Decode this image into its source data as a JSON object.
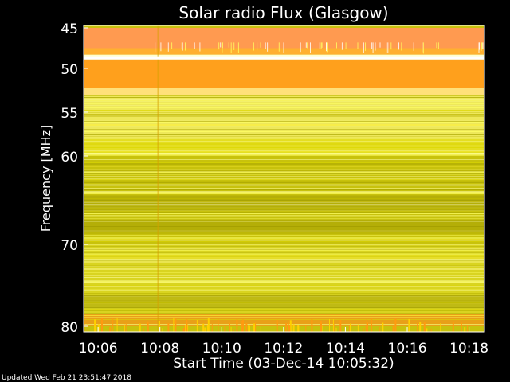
{
  "chart_data": {
    "type": "heatmap",
    "title": "Solar radio Flux (Glasgow)",
    "xlabel": "Start Time (03-Dec-14 10:05:32)",
    "ylabel": "Frequency [MHz]",
    "x_axis": {
      "unit": "time",
      "range": [
        "10:05:32",
        "10:18:30"
      ],
      "ticks": [
        "10:06",
        "10:08",
        "10:10",
        "10:12",
        "10:14",
        "10:16",
        "10:18"
      ]
    },
    "y_axis": {
      "unit": "MHz",
      "range": [
        45,
        80
      ],
      "inverted": true,
      "scale": "nonlinear",
      "ticks": [
        "45",
        "50",
        "55",
        "60",
        "70",
        "80"
      ]
    },
    "legend": "none",
    "grid": false,
    "colormap": [
      "#ff8a4a",
      "#ffa31f",
      "#ffe61a",
      "#f7f200",
      "#c9c400",
      "#ffffff"
    ],
    "frequency_bands": [
      {
        "from_mhz": 45.0,
        "to_mhz": 47.5,
        "level": "high",
        "color": "#ff9a50"
      },
      {
        "from_mhz": 47.5,
        "to_mhz": 48.3,
        "level": "high",
        "color": "#ffb030"
      },
      {
        "from_mhz": 48.3,
        "to_mhz": 48.9,
        "level": "saturated",
        "color": "#ffffd0"
      },
      {
        "from_mhz": 48.9,
        "to_mhz": 52.2,
        "level": "high",
        "color": "#ffa01c"
      },
      {
        "from_mhz": 52.2,
        "to_mhz": 53.0,
        "level": "medium",
        "color": "#ffe07a"
      },
      {
        "from_mhz": 53.0,
        "to_mhz": 58.0,
        "level": "medium",
        "color": "#eee85a"
      },
      {
        "from_mhz": 58.0,
        "to_mhz": 60.0,
        "level": "medium",
        "color": "#e4de22"
      },
      {
        "from_mhz": 60.0,
        "to_mhz": 70.0,
        "level": "low",
        "color": "#c8c20c"
      },
      {
        "from_mhz": 70.0,
        "to_mhz": 78.5,
        "level": "low",
        "color": "#d9d420"
      },
      {
        "from_mhz": 78.5,
        "to_mhz": 80.0,
        "level": "medium",
        "color": "#e8a018"
      }
    ]
  },
  "footer": {
    "updated": "Updated Wed Feb 21 23:51:47 2018"
  }
}
